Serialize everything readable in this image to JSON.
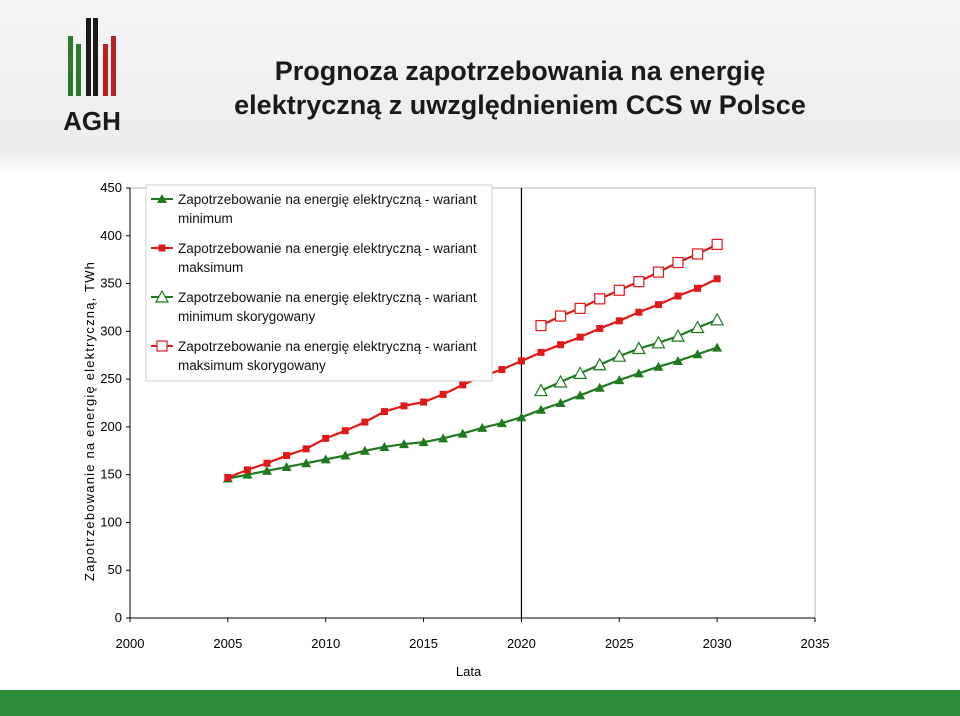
{
  "header": {
    "logo_text": "AGH",
    "title_line1": "Prognoza zapotrzebowania na energię",
    "title_line2": "elektryczną z uwzględnieniem CCS w Polsce"
  },
  "chart_data": {
    "type": "line",
    "title": "",
    "xlabel": "Lata",
    "ylabel": "Zapotrzebowanie na energię elektryczną, TWh",
    "xlim": [
      2000,
      2035
    ],
    "ylim": [
      0,
      450
    ],
    "xticks": [
      2000,
      2005,
      2010,
      2015,
      2020,
      2025,
      2030,
      2035
    ],
    "yticks": [
      0,
      50,
      100,
      150,
      200,
      250,
      300,
      350,
      400,
      450
    ],
    "vertical_line_x": 2020,
    "legend_position": "top-left",
    "series": [
      {
        "name": "Zapotrzebowanie na energię elektryczną - wariant minimum",
        "name_lines": [
          "Zapotrzebowanie na energię elektryczną - wariant",
          "minimum"
        ],
        "color": "#1f7a1f",
        "marker": "triangle-filled",
        "x": [
          2005,
          2006,
          2007,
          2008,
          2009,
          2010,
          2011,
          2012,
          2013,
          2014,
          2015,
          2016,
          2017,
          2018,
          2019,
          2020,
          2021,
          2022,
          2023,
          2024,
          2025,
          2026,
          2027,
          2028,
          2029,
          2030
        ],
        "y": [
          146,
          150,
          154,
          158,
          162,
          166,
          170,
          175,
          179,
          182,
          184,
          188,
          193,
          199,
          204,
          210,
          218,
          225,
          233,
          241,
          249,
          256,
          263,
          269,
          276,
          283
        ]
      },
      {
        "name": "Zapotrzebowanie na energię elektryczną - wariant maksimum",
        "name_lines": [
          "Zapotrzebowanie na energię elektryczną - wariant",
          "maksimum"
        ],
        "color": "#e01818",
        "marker": "square-filled",
        "x": [
          2005,
          2006,
          2007,
          2008,
          2009,
          2010,
          2011,
          2012,
          2013,
          2014,
          2015,
          2016,
          2017,
          2018,
          2019,
          2020,
          2021,
          2022,
          2023,
          2024,
          2025,
          2026,
          2027,
          2028,
          2029,
          2030
        ],
        "y": [
          147,
          155,
          162,
          170,
          177,
          188,
          196,
          205,
          216,
          222,
          226,
          234,
          244,
          253,
          260,
          269,
          278,
          286,
          294,
          303,
          311,
          320,
          328,
          337,
          345,
          355
        ]
      },
      {
        "name": "Zapotrzebowanie na energię elektryczną - wariant minimum skorygowany",
        "name_lines": [
          "Zapotrzebowanie na energię elektryczną - wariant",
          "minimum skorygowany"
        ],
        "color": "#1f7a1f",
        "marker": "triangle-open",
        "x": [
          2021,
          2022,
          2023,
          2024,
          2025,
          2026,
          2027,
          2028,
          2029,
          2030
        ],
        "y": [
          238,
          247,
          256,
          265,
          274,
          282,
          288,
          295,
          304,
          312
        ]
      },
      {
        "name": "Zapotrzebowanie na energię elektryczną - wariant maksimum skorygowany",
        "name_lines": [
          "Zapotrzebowanie na energię elektryczną - wariant",
          "maksimum skorygowany"
        ],
        "color": "#e01818",
        "marker": "square-open",
        "x": [
          2021,
          2022,
          2023,
          2024,
          2025,
          2026,
          2027,
          2028,
          2029,
          2030
        ],
        "y": [
          306,
          316,
          324,
          334,
          343,
          352,
          362,
          372,
          381,
          391
        ]
      }
    ]
  }
}
